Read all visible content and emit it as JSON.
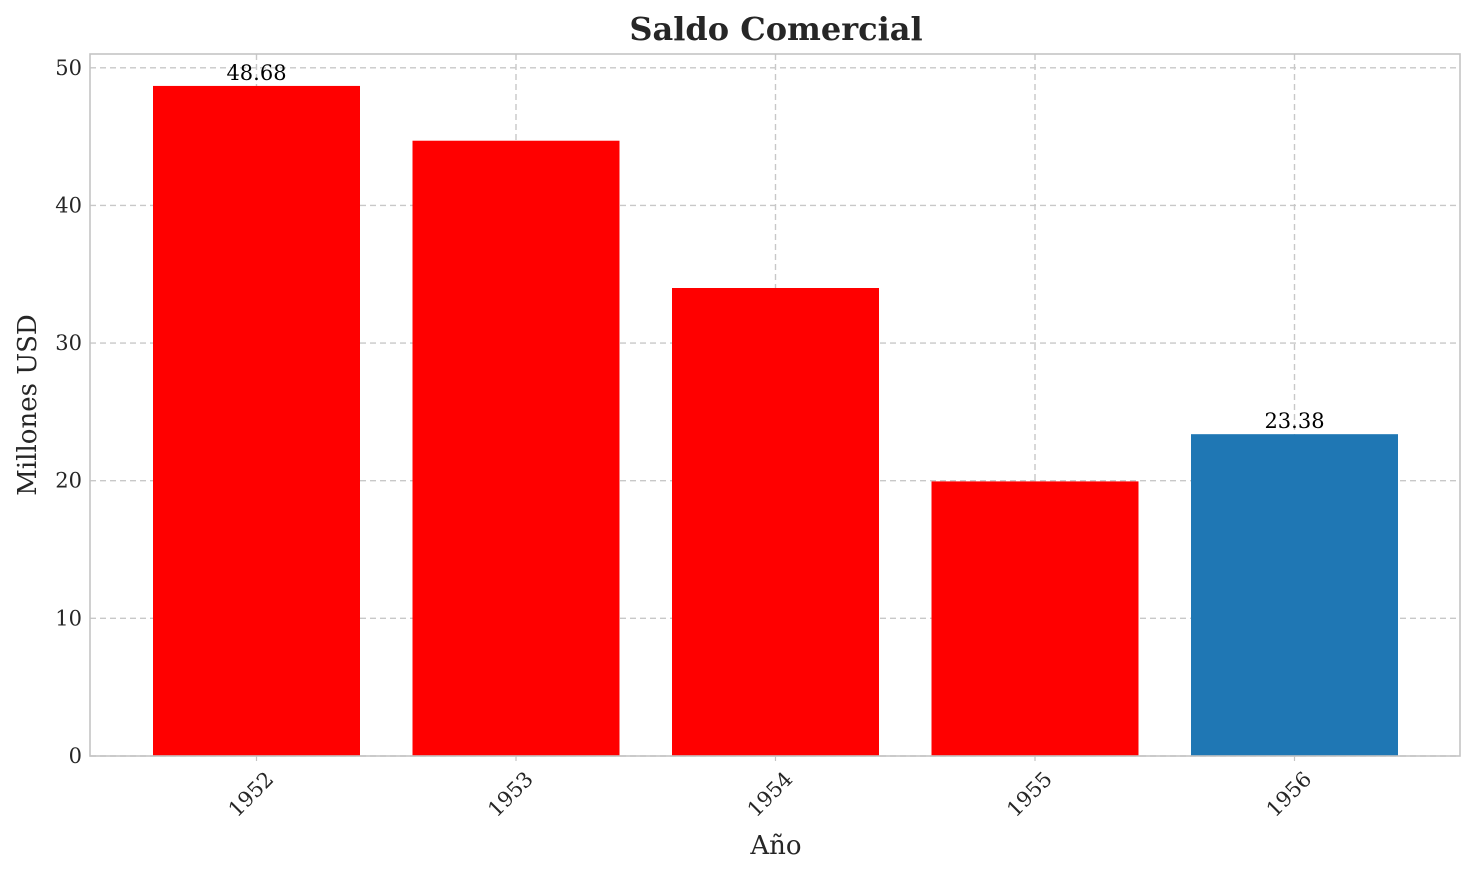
{
  "chart_data": {
    "type": "bar",
    "title": "Saldo Comercial",
    "xlabel": "Año",
    "ylabel": "Millones USD",
    "categories": [
      "1952",
      "1953",
      "1954",
      "1955",
      "1956"
    ],
    "values": [
      48.68,
      44.7,
      34.0,
      19.95,
      23.38
    ],
    "data_labels": [
      "48.68",
      "",
      "",
      "",
      "23.38"
    ],
    "bar_colors": [
      "#ff0000",
      "#ff0000",
      "#ff0000",
      "#ff0000",
      "#1f77b4"
    ],
    "ylim": [
      0,
      51
    ],
    "yticks": [
      0,
      10,
      20,
      30,
      40,
      50
    ],
    "grid": true,
    "legend": "none"
  }
}
